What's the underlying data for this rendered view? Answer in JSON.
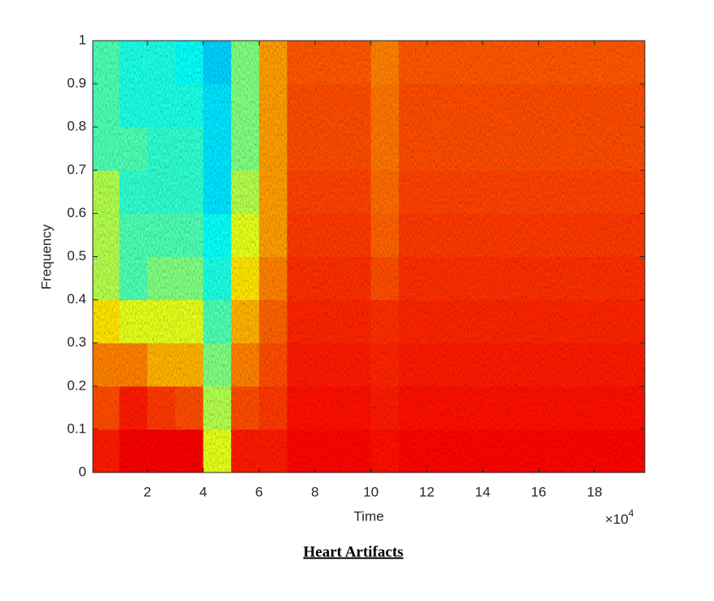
{
  "chart_data": {
    "type": "heatmap",
    "caption": "Heart Artifacts",
    "xlabel": "Time",
    "ylabel": "Frequency",
    "x_multiplier_base": "×10",
    "x_multiplier_exponent": "4",
    "colormap": "jet",
    "zlim": [
      0,
      1
    ],
    "x": [
      0.5,
      1.5,
      2.5,
      3.5,
      4.5,
      5.5,
      6.5,
      7.5,
      8.5,
      9.5,
      10.5,
      11.5,
      12.5,
      13.5,
      14.5,
      15.5,
      16.5,
      17.5,
      18.5,
      19.5
    ],
    "y": [
      0.05,
      0.15,
      0.25,
      0.35,
      0.45,
      0.55,
      0.65,
      0.75,
      0.85,
      0.95
    ],
    "z": [
      [
        0.85,
        0.8,
        0.75,
        0.65,
        0.55,
        0.55,
        0.55,
        0.45,
        0.45,
        0.45
      ],
      [
        0.88,
        0.85,
        0.75,
        0.6,
        0.45,
        0.45,
        0.42,
        0.45,
        0.4,
        0.4
      ],
      [
        0.88,
        0.82,
        0.7,
        0.6,
        0.5,
        0.45,
        0.42,
        0.42,
        0.4,
        0.4
      ],
      [
        0.88,
        0.8,
        0.7,
        0.6,
        0.5,
        0.45,
        0.42,
        0.42,
        0.4,
        0.38
      ],
      [
        0.6,
        0.55,
        0.5,
        0.45,
        0.4,
        0.38,
        0.35,
        0.35,
        0.35,
        0.33
      ],
      [
        0.85,
        0.8,
        0.75,
        0.7,
        0.65,
        0.6,
        0.55,
        0.5,
        0.5,
        0.5
      ],
      [
        0.85,
        0.82,
        0.8,
        0.78,
        0.75,
        0.72,
        0.72,
        0.72,
        0.72,
        0.72
      ],
      [
        0.87,
        0.86,
        0.85,
        0.84,
        0.83,
        0.82,
        0.81,
        0.8,
        0.8,
        0.79
      ],
      [
        0.87,
        0.86,
        0.85,
        0.84,
        0.83,
        0.82,
        0.81,
        0.8,
        0.8,
        0.79
      ],
      [
        0.87,
        0.86,
        0.85,
        0.84,
        0.83,
        0.82,
        0.81,
        0.8,
        0.8,
        0.79
      ],
      [
        0.86,
        0.85,
        0.84,
        0.83,
        0.8,
        0.78,
        0.77,
        0.76,
        0.76,
        0.75
      ],
      [
        0.87,
        0.86,
        0.85,
        0.84,
        0.83,
        0.82,
        0.81,
        0.8,
        0.8,
        0.79
      ],
      [
        0.87,
        0.86,
        0.85,
        0.84,
        0.83,
        0.82,
        0.81,
        0.8,
        0.8,
        0.79
      ],
      [
        0.87,
        0.86,
        0.85,
        0.84,
        0.83,
        0.82,
        0.81,
        0.8,
        0.8,
        0.79
      ],
      [
        0.87,
        0.86,
        0.85,
        0.84,
        0.83,
        0.82,
        0.81,
        0.8,
        0.8,
        0.79
      ],
      [
        0.87,
        0.86,
        0.85,
        0.84,
        0.83,
        0.82,
        0.81,
        0.8,
        0.8,
        0.79
      ],
      [
        0.87,
        0.86,
        0.85,
        0.84,
        0.83,
        0.82,
        0.81,
        0.8,
        0.8,
        0.79
      ],
      [
        0.87,
        0.86,
        0.85,
        0.84,
        0.83,
        0.82,
        0.81,
        0.8,
        0.8,
        0.79
      ],
      [
        0.87,
        0.86,
        0.85,
        0.84,
        0.83,
        0.82,
        0.81,
        0.8,
        0.8,
        0.79
      ],
      [
        0.87,
        0.86,
        0.85,
        0.84,
        0.83,
        0.82,
        0.81,
        0.8,
        0.8,
        0.79
      ]
    ],
    "xlim": [
      0.05,
      19.8
    ],
    "xticks": [
      2,
      4,
      6,
      8,
      10,
      12,
      14,
      16,
      18
    ],
    "ylim": [
      0,
      1
    ],
    "yticks": [
      0,
      0.1,
      0.2,
      0.3,
      0.4,
      0.5,
      0.6,
      0.7,
      0.8,
      0.9,
      1
    ]
  }
}
